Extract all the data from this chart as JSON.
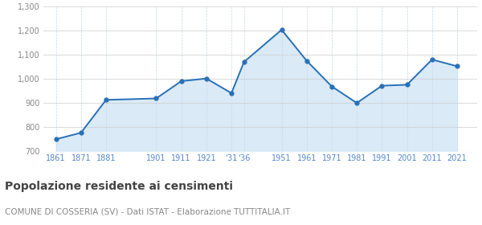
{
  "population": [
    748,
    775,
    912,
    918,
    990,
    1001,
    940,
    1070,
    1204,
    1075,
    968,
    899,
    971,
    975,
    1080,
    1052
  ],
  "x_positions": [
    0,
    1,
    2,
    4,
    5,
    6,
    7,
    7.5,
    9,
    10,
    11,
    12,
    13,
    14,
    15,
    16
  ],
  "xtick_positions": [
    0,
    1,
    2,
    4,
    5,
    6,
    7,
    7.5,
    9,
    10,
    11,
    12,
    13,
    14,
    15,
    16
  ],
  "xtick_labels": [
    "1861",
    "1871",
    "1881",
    "1901",
    "1911",
    "1921",
    "‘31",
    "‘36",
    "1951",
    "1961",
    "1971",
    "1981",
    "1991",
    "2001",
    "2011",
    "2021"
  ],
  "xlim": [
    -0.5,
    16.8
  ],
  "ylim": [
    700,
    1300
  ],
  "yticks": [
    700,
    800,
    900,
    1000,
    1100,
    1200,
    1300
  ],
  "ytick_labels": [
    "700",
    "800",
    "900",
    "1,000",
    "1,100",
    "1,200",
    "1,300"
  ],
  "line_color": "#2970b8",
  "fill_color": "#daeaf7",
  "marker_color": "#2970b8",
  "bg_color": "#ffffff",
  "grid_color_y": "#cccccc",
  "grid_color_x": "#c8d8e8",
  "tick_color": "#5588cc",
  "ytick_color": "#888888",
  "title": "Popolazione residente ai censimenti",
  "subtitle": "COMUNE DI COSSERIA (SV) - Dati ISTAT - Elaborazione TUTTITALIA.IT",
  "title_fontsize": 10,
  "subtitle_fontsize": 7.5
}
